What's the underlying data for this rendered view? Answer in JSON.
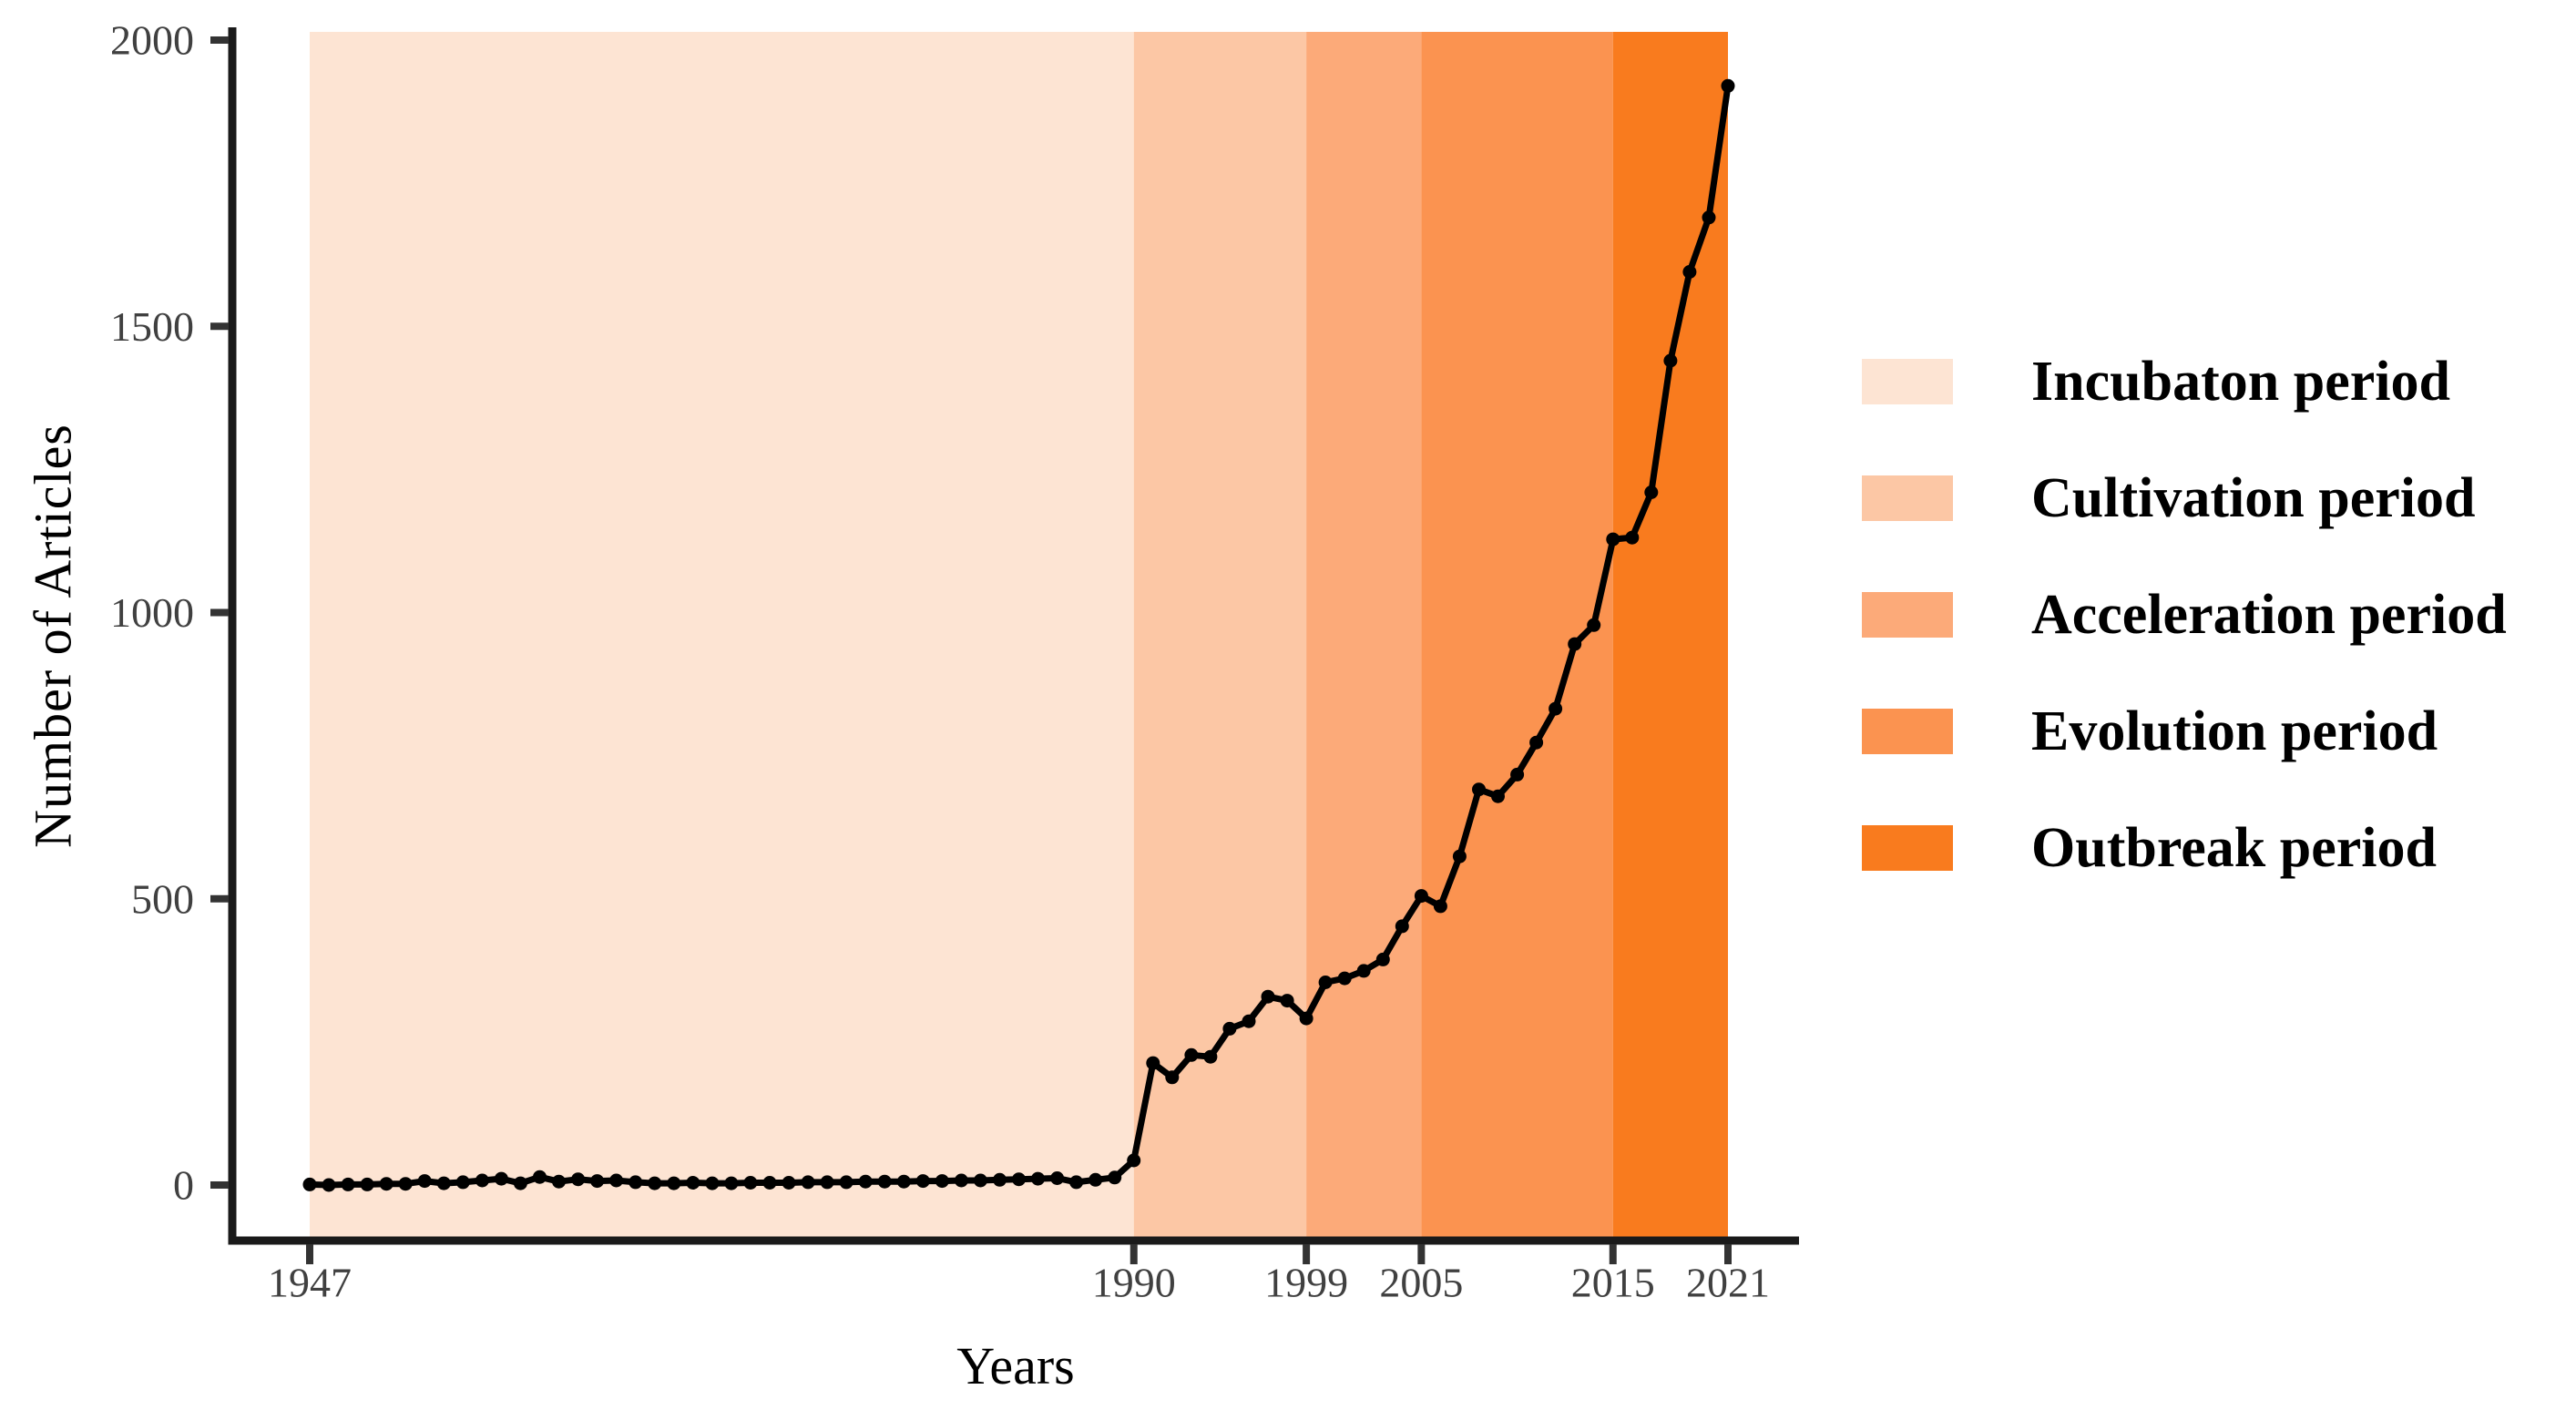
{
  "figure": {
    "background": "#ffffff"
  },
  "axes": {
    "x_title": "Years",
    "y_title": "Number of Articles",
    "x_ticks": [
      1947,
      1990,
      1999,
      2005,
      2015,
      2021
    ],
    "y_ticks": [
      0,
      500,
      1000,
      1500,
      2000
    ],
    "tick_label_color": "#404040",
    "axis_line_color": "#1a1a1a",
    "tick_mark_color": "#333333",
    "title_color": "#000000"
  },
  "chart_data": {
    "type": "line",
    "title": "",
    "xlabel": "Years",
    "ylabel": "Number of Articles",
    "series_name": "Number of Articles",
    "line_color": "#000000",
    "marker": "circle",
    "grid": false,
    "legend_position": "right",
    "xlim": [
      1943,
      2025
    ],
    "ylim": [
      0,
      2050
    ],
    "x": [
      1947,
      1948,
      1949,
      1950,
      1951,
      1952,
      1953,
      1954,
      1955,
      1956,
      1957,
      1958,
      1959,
      1960,
      1961,
      1962,
      1963,
      1964,
      1965,
      1966,
      1967,
      1968,
      1969,
      1970,
      1971,
      1972,
      1973,
      1974,
      1975,
      1976,
      1977,
      1978,
      1979,
      1980,
      1981,
      1982,
      1983,
      1984,
      1985,
      1986,
      1987,
      1988,
      1989,
      1990,
      1991,
      1992,
      1993,
      1994,
      1995,
      1996,
      1997,
      1998,
      1999,
      2000,
      2001,
      2002,
      2003,
      2004,
      2005,
      2006,
      2007,
      2008,
      2009,
      2010,
      2011,
      2012,
      2013,
      2014,
      2015,
      2016,
      2017,
      2018,
      2019,
      2020,
      2021
    ],
    "values": [
      1,
      0,
      1,
      1,
      2,
      2,
      7,
      3,
      5,
      8,
      11,
      3,
      14,
      6,
      10,
      7,
      8,
      5,
      3,
      3,
      4,
      3,
      3,
      4,
      4,
      4,
      5,
      5,
      5,
      6,
      6,
      6,
      7,
      7,
      8,
      8,
      9,
      10,
      11,
      12,
      5,
      9,
      13,
      43,
      213,
      188,
      227,
      224,
      273,
      286,
      329,
      322,
      291,
      354,
      361,
      374,
      394,
      452,
      505,
      487,
      574,
      691,
      679,
      717,
      773,
      832,
      945,
      978,
      1128,
      1131,
      1210,
      1440,
      1595,
      1690,
      1920
    ],
    "periods": [
      {
        "name": "incubation",
        "label": "Incubaton period",
        "start": 1947,
        "end": 1990,
        "color": "#fde4d3"
      },
      {
        "name": "cultivation",
        "label": "Cultivation period",
        "start": 1990,
        "end": 1999,
        "color": "#fcc7a5"
      },
      {
        "name": "acceleration",
        "label": "Acceleration period",
        "start": 1999,
        "end": 2005,
        "color": "#fcaa79"
      },
      {
        "name": "evolution",
        "label": "Evolution period",
        "start": 2005,
        "end": 2015,
        "color": "#fb9350"
      },
      {
        "name": "outbreak",
        "label": "Outbreak period",
        "start": 2015,
        "end": 2021,
        "color": "#f97b1e"
      }
    ]
  }
}
